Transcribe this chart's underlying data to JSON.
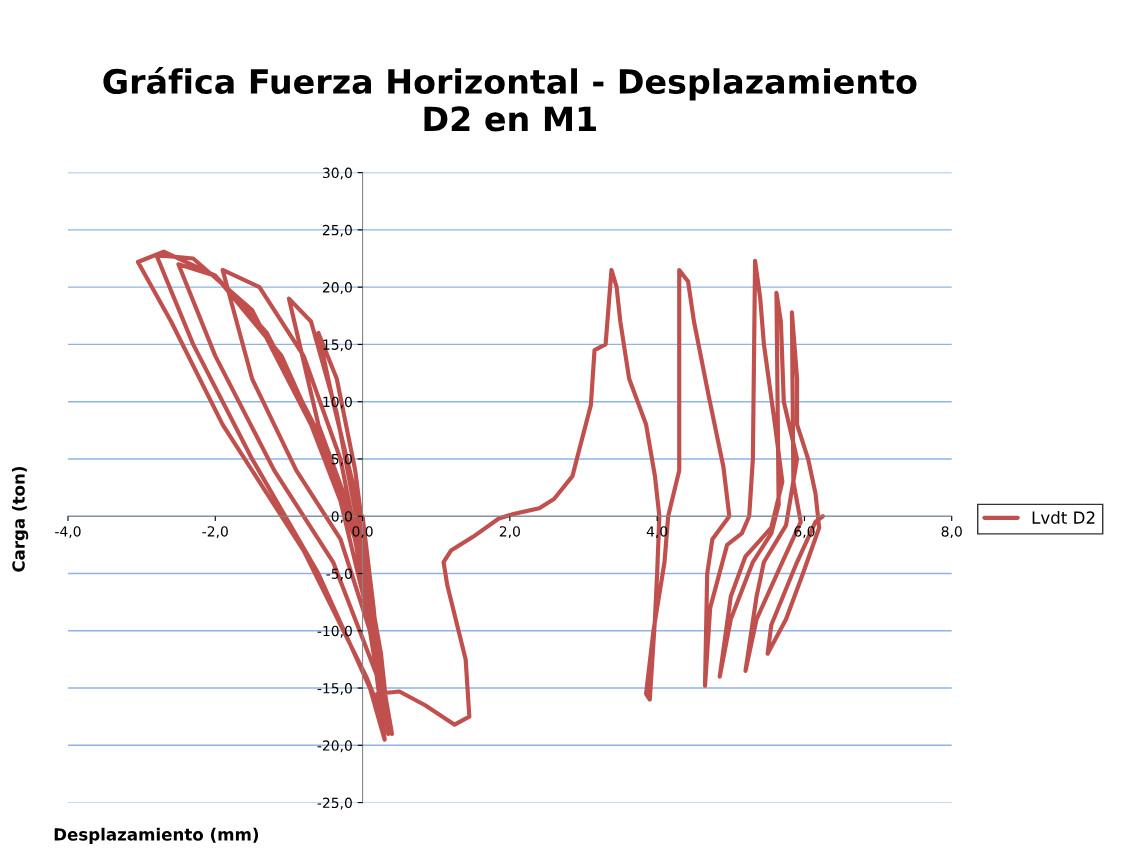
{
  "chart_data": {
    "type": "line",
    "title": "Gráfica Fuerza Horizontal - Desplazamiento\nD2 en M1",
    "xlabel": "Desplazamiento (mm)",
    "ylabel": "Carga (ton)",
    "xlim": [
      -4,
      8
    ],
    "ylim": [
      -25,
      30
    ],
    "xticks": [
      {
        "value": -4,
        "label": "-4,0"
      },
      {
        "value": -2,
        "label": "-2,0"
      },
      {
        "value": 0,
        "label": "0,0"
      },
      {
        "value": 2,
        "label": "2,0"
      },
      {
        "value": 4,
        "label": "4,0"
      },
      {
        "value": 6,
        "label": "6,0"
      },
      {
        "value": 8,
        "label": "8,0"
      }
    ],
    "yticks": [
      {
        "value": -25,
        "label": "-25,0"
      },
      {
        "value": -20,
        "label": "-20,0"
      },
      {
        "value": -15,
        "label": "-15,0"
      },
      {
        "value": -10,
        "label": "-10,0"
      },
      {
        "value": -5,
        "label": "-5,0"
      },
      {
        "value": 0,
        "label": "0,0"
      },
      {
        "value": 5,
        "label": "5,0"
      },
      {
        "value": 10,
        "label": "10,0"
      },
      {
        "value": 15,
        "label": "15,0"
      },
      {
        "value": 20,
        "label": "20,0"
      },
      {
        "value": 25,
        "label": "25,0"
      },
      {
        "value": 30,
        "label": "30,0"
      }
    ],
    "grid": "y",
    "legend": "right",
    "marker": "none",
    "line_style": "solid",
    "series": [
      {
        "name": "Lvdt D2",
        "color": "#c0504d",
        "x": [
          0.0,
          0.15,
          0.25,
          0.1,
          -0.1,
          -0.4,
          -0.6,
          -0.35,
          -0.1,
          0.1,
          0.3,
          0.15,
          -0.2,
          -0.6,
          -1.0,
          -0.7,
          -0.35,
          0.0,
          0.25,
          0.35,
          0.2,
          -0.3,
          -0.9,
          -1.5,
          -1.9,
          -1.4,
          -0.8,
          -0.3,
          0.1,
          0.4,
          0.2,
          -0.4,
          -1.2,
          -2.0,
          -2.5,
          -2.0,
          -1.3,
          -0.5,
          0.0,
          0.3,
          0.1,
          -0.6,
          -1.5,
          -2.3,
          -2.8,
          -2.3,
          -1.5,
          -0.7,
          -0.1,
          0.3,
          0.05,
          -0.8,
          -1.9,
          -2.6,
          -3.05,
          -2.7,
          -2.0,
          -1.1,
          -0.4,
          0.05,
          0.35,
          0.2,
          0.5,
          0.85,
          1.25,
          1.45,
          1.4,
          1.15,
          1.1,
          1.2,
          1.5,
          1.85,
          2.05,
          2.4,
          2.6,
          2.85,
          2.95,
          3.1,
          3.15,
          3.3,
          3.38,
          3.45,
          3.5,
          3.62,
          3.85,
          3.97,
          4.03,
          4.0,
          3.97,
          3.9,
          3.85,
          3.95,
          4.1,
          4.15,
          4.3,
          4.3,
          4.42,
          4.5,
          4.7,
          4.9,
          4.98,
          4.75,
          4.68,
          4.65,
          4.72,
          4.95,
          5.15,
          5.25,
          5.3,
          5.33,
          5.4,
          5.45,
          5.6,
          5.7,
          5.55,
          5.2,
          5.0,
          4.85,
          5.0,
          5.3,
          5.55,
          5.65,
          5.62,
          5.68,
          5.72,
          5.9,
          5.75,
          5.45,
          5.35,
          5.2,
          5.35,
          5.7,
          5.95,
          5.85,
          5.83,
          5.9,
          5.9,
          6.05,
          6.15,
          6.2,
          5.98,
          5.75,
          5.5,
          5.55,
          5.9,
          6.15,
          6.25
        ],
        "values": [
          0.0,
          -8,
          -15,
          -8,
          2,
          10,
          16,
          12,
          4,
          -6,
          -17,
          -10,
          1,
          8,
          19,
          17,
          9,
          -3,
          -12,
          -18,
          -12,
          -2,
          4,
          12,
          21.5,
          20,
          14,
          5,
          -8,
          -19,
          -14,
          -4,
          4,
          14,
          22,
          21,
          16,
          6,
          -4,
          -19.5,
          -15,
          -5,
          5,
          15,
          22.8,
          22.5,
          18,
          8,
          -2,
          -18,
          -14,
          -3,
          8,
          17,
          22.2,
          23.1,
          21,
          14,
          4,
          -8,
          -19,
          -15.5,
          -15.3,
          -16.5,
          -18.2,
          -17.5,
          -12.5,
          -6,
          -4,
          -3,
          -1.8,
          -0.2,
          0.2,
          0.7,
          1.5,
          3.5,
          6,
          9.7,
          14.5,
          15,
          21.5,
          20,
          17,
          12,
          8,
          3.5,
          0,
          -5,
          -9,
          -16,
          -15.5,
          -10,
          -4,
          0,
          4,
          21.5,
          20.5,
          17,
          10.5,
          4.3,
          0,
          -2,
          -5,
          -14.8,
          -8,
          -2.5,
          -1.5,
          0,
          5,
          22.3,
          19,
          15,
          8,
          3,
          -1,
          -3.5,
          -7,
          -14,
          -9,
          -4,
          -1.5,
          1,
          19.5,
          17,
          10,
          5,
          -0.8,
          -4,
          -7,
          -13.5,
          -9,
          -4,
          -0.5,
          3,
          17.8,
          12,
          8,
          5,
          2,
          -1,
          -5,
          -9,
          -12,
          -9.5,
          -4,
          -0.5,
          0
        ]
      }
    ]
  }
}
